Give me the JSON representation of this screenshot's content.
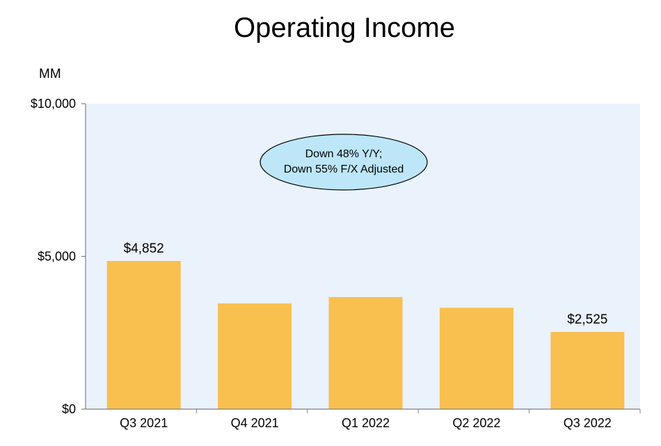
{
  "chart_data": {
    "type": "bar",
    "title": "Operating Income",
    "unit_label": "MM",
    "categories": [
      "Q3 2021",
      "Q4 2021",
      "Q1 2022",
      "Q2 2022",
      "Q3 2022"
    ],
    "values": [
      4852,
      3460,
      3669,
      3317,
      2525
    ],
    "data_labels": [
      "$4,852",
      "",
      "",
      "",
      "$2,525"
    ],
    "ylim": [
      0,
      10000
    ],
    "yticks": [
      0,
      5000,
      10000
    ],
    "ytick_labels": [
      "$0",
      "$5,000",
      "$10,000"
    ],
    "annotation": [
      "Down 48% Y/Y;",
      "Down 55% F/X Adjusted"
    ],
    "colors": {
      "bar": "#F9BF4F",
      "plot_background": "#EAF2FC",
      "axis": "#808080",
      "annotation_fill": "#BDE6F9"
    },
    "grid": false,
    "legend": "none"
  }
}
